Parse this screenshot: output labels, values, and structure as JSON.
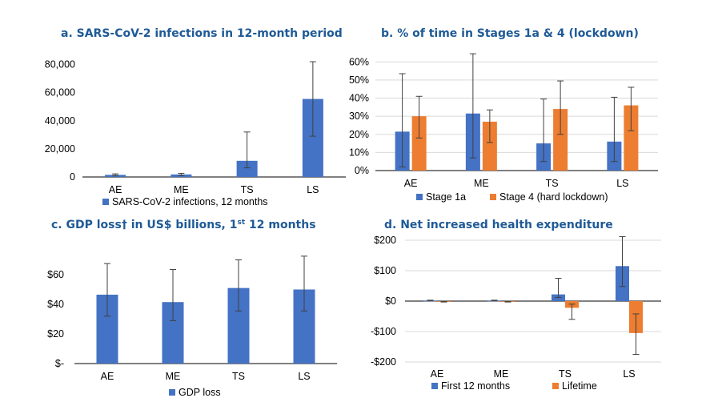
{
  "colors": {
    "blue": "#4472c4",
    "orange": "#ed7d31",
    "title": "#1f5a96"
  },
  "chart_data": [
    {
      "type": "bar",
      "panel": "a",
      "title_main": "a. SARS-CoV-2 infections in 12-month period",
      "categories": [
        "AE",
        "ME",
        "TS",
        "LS"
      ],
      "series": [
        {
          "name": "SARS-CoV-2 infections, 12 months",
          "color": "#4472c4",
          "values": [
            1500,
            1800,
            11500,
            55500
          ],
          "err_low": [
            800,
            900,
            6500,
            29000
          ],
          "err_high": [
            2200,
            2600,
            32000,
            82000
          ]
        }
      ],
      "ylim": [
        0,
        90000
      ],
      "yticks": [
        0,
        20000,
        40000,
        60000,
        80000
      ],
      "ytick_labels": [
        "0",
        "20,000",
        "40,000",
        "60,000",
        "80,000"
      ],
      "grid": false,
      "legend": "bottom"
    },
    {
      "type": "bar",
      "panel": "b",
      "title_main": "b. % of time in Stages 1a & 4 (lockdown)",
      "categories": [
        "AE",
        "ME",
        "TS",
        "LS"
      ],
      "series": [
        {
          "name": "Stage 1a",
          "color": "#4472c4",
          "values": [
            21.5,
            31.5,
            15,
            16
          ],
          "err_low": [
            2,
            7,
            5,
            5
          ],
          "err_high": [
            53.5,
            64.5,
            39.5,
            40.5
          ]
        },
        {
          "name": "Stage 4 (hard lockdown)",
          "color": "#ed7d31",
          "values": [
            30,
            27,
            34,
            36
          ],
          "err_low": [
            18,
            15.5,
            20,
            22
          ],
          "err_high": [
            41,
            33.5,
            49.5,
            46
          ]
        }
      ],
      "ylim": [
        0,
        65
      ],
      "yticks": [
        0,
        10,
        20,
        30,
        40,
        50,
        60
      ],
      "ytick_labels": [
        "0%",
        "10%",
        "20%",
        "30%",
        "40%",
        "50%",
        "60%"
      ],
      "grid": true,
      "legend": "bottom"
    },
    {
      "type": "bar",
      "panel": "c",
      "title_main": "c. GDP loss† in US$ billions, 1",
      "title_sup": "st",
      "title_end": " 12 months",
      "categories": [
        "AE",
        "ME",
        "TS",
        "LS"
      ],
      "series": [
        {
          "name": "GDP loss",
          "color": "#4472c4",
          "values": [
            46.5,
            41.5,
            51,
            50
          ],
          "err_low": [
            32,
            29,
            35.5,
            35.5
          ],
          "err_high": [
            67.5,
            63.5,
            70,
            72.5
          ]
        }
      ],
      "ylim": [
        0,
        80
      ],
      "yticks": [
        0,
        20,
        40,
        60
      ],
      "ytick_labels": [
        "$-",
        "$20",
        "$40",
        "$60"
      ],
      "grid": false,
      "legend": "bottom"
    },
    {
      "type": "bar",
      "panel": "d",
      "title_main": "d. Net increased health expenditure",
      "categories": [
        "AE",
        "ME",
        "TS",
        "LS"
      ],
      "series": [
        {
          "name": "First 12 months",
          "color": "#4472c4",
          "values": [
            2,
            2,
            22,
            115
          ],
          "err_low": [
            1,
            1,
            12,
            48
          ],
          "err_high": [
            3,
            3,
            75,
            212
          ]
        },
        {
          "name": "Lifetime",
          "color": "#ed7d31",
          "values": [
            -2,
            -2,
            -22,
            -105
          ],
          "err_low": [
            -3,
            -3,
            -60,
            -175
          ],
          "err_high": [
            -1,
            -1,
            -10,
            -42
          ]
        }
      ],
      "ylim": [
        -200,
        200
      ],
      "yticks": [
        -200,
        -100,
        0,
        100,
        200
      ],
      "ytick_labels": [
        "-$200",
        "-$100",
        "$0",
        "$100",
        "$200"
      ],
      "grid": true,
      "legend": "bottom"
    }
  ]
}
